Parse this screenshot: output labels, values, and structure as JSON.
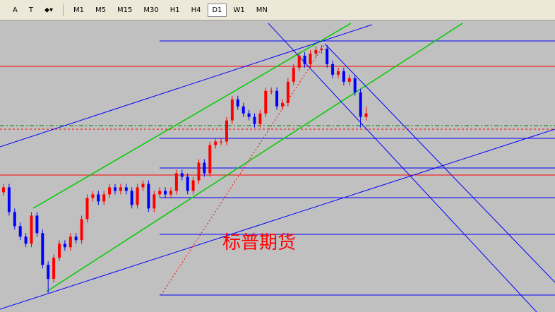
{
  "toolbar": {
    "tools": [
      "A",
      "T"
    ],
    "periods": [
      "M1",
      "M5",
      "M15",
      "M30",
      "H1",
      "H4",
      "D1",
      "W1",
      "MN"
    ],
    "active": "D1"
  },
  "chart": {
    "watermark": "标普期货",
    "ylim": [
      0,
      414
    ],
    "open": [
      170,
      177,
      142,
      122,
      107,
      97,
      137,
      112,
      67,
      47,
      77,
      97,
      92,
      107,
      102,
      132,
      162,
      167,
      157,
      167,
      177,
      172,
      177,
      172,
      152,
      177,
      182,
      147,
      167,
      172,
      167,
      172,
      197,
      192,
      172,
      187,
      212,
      197,
      237,
      242,
      242,
      272,
      302,
      292,
      282,
      277,
      267,
      282,
      314,
      314,
      292,
      297,
      327,
      347,
      364,
      352,
      367,
      372,
      374,
      352,
      337,
      342,
      327,
      332,
      312,
      277
    ],
    "high": [
      182,
      182,
      147,
      127,
      112,
      142,
      142,
      117,
      72,
      82,
      102,
      102,
      112,
      112,
      137,
      167,
      172,
      172,
      172,
      182,
      182,
      182,
      182,
      177,
      182,
      187,
      187,
      172,
      177,
      177,
      177,
      202,
      202,
      197,
      192,
      217,
      217,
      242,
      247,
      247,
      277,
      307,
      307,
      297,
      287,
      282,
      287,
      319,
      319,
      319,
      302,
      332,
      352,
      369,
      369,
      372,
      377,
      379,
      379,
      357,
      347,
      347,
      337,
      337,
      317,
      292
    ],
    "low": [
      165,
      137,
      117,
      102,
      92,
      92,
      107,
      62,
      27,
      42,
      72,
      87,
      87,
      97,
      97,
      127,
      157,
      152,
      152,
      162,
      167,
      167,
      167,
      147,
      147,
      172,
      142,
      142,
      162,
      162,
      162,
      167,
      187,
      167,
      167,
      182,
      192,
      192,
      232,
      237,
      237,
      267,
      287,
      277,
      272,
      262,
      262,
      277,
      309,
      287,
      287,
      292,
      322,
      342,
      347,
      347,
      362,
      367,
      347,
      332,
      332,
      322,
      322,
      307,
      262,
      272
    ],
    "close": [
      177,
      142,
      122,
      107,
      97,
      137,
      112,
      67,
      47,
      77,
      97,
      92,
      107,
      102,
      132,
      162,
      167,
      157,
      167,
      177,
      172,
      177,
      172,
      152,
      177,
      182,
      147,
      167,
      172,
      167,
      172,
      197,
      192,
      172,
      187,
      212,
      197,
      237,
      242,
      242,
      272,
      302,
      292,
      282,
      277,
      267,
      282,
      314,
      314,
      292,
      297,
      327,
      347,
      364,
      352,
      367,
      372,
      374,
      352,
      337,
      342,
      327,
      332,
      312,
      277,
      282
    ]
  }
}
